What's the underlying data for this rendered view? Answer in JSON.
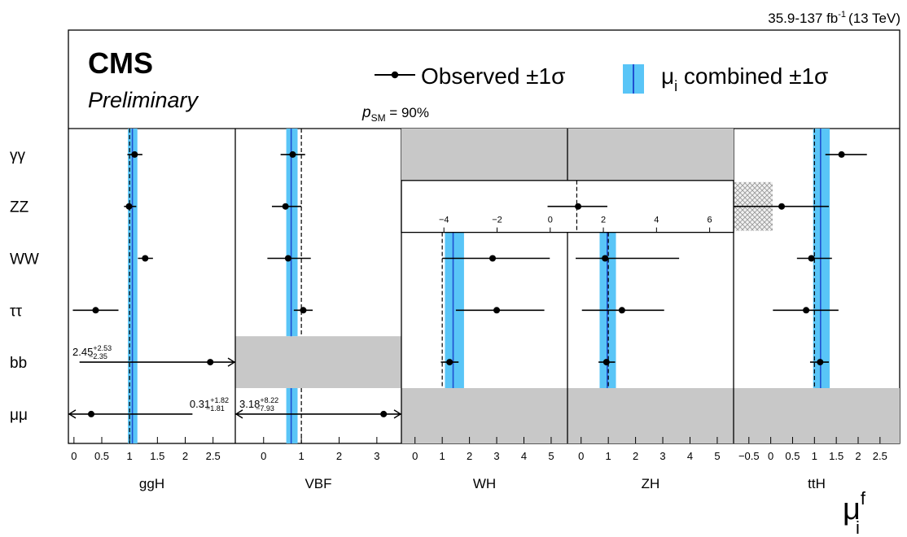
{
  "lumi_label": "35.9-137 fb",
  "lumi_sup": "-1",
  "lumi_energy": "(13 TeV)",
  "cms_label": "CMS",
  "preliminary_label": "Preliminary",
  "legend": {
    "observed": "Observed ±1σ",
    "combined_pre": "μ",
    "combined_sub": "i",
    "combined_post": " combined ±1σ"
  },
  "psm": {
    "p": "p",
    "sub": "SM",
    "value": " = 90%"
  },
  "axis_title": {
    "main": "μ",
    "sup": "f",
    "sub": "i"
  },
  "colors": {
    "band": "#59c5f7",
    "band_line": "#1f4fd1",
    "grey": "#c8c8c8",
    "hatch": "#9a9a9a"
  },
  "chart_data": {
    "type": "scatter",
    "decays": [
      "γγ",
      "ZZ",
      "WW",
      "ττ",
      "bb",
      "μμ"
    ],
    "panels": [
      {
        "name": "ggH",
        "xlim": [
          -0.1,
          2.9
        ],
        "ticks": [
          0,
          0.5,
          1,
          1.5,
          2,
          2.5
        ],
        "tick_labels": [
          "0",
          "0.5",
          "1",
          "1.5",
          "2",
          "2.5"
        ],
        "combined": {
          "value": 1.05,
          "low": 0.97,
          "high": 1.14
        },
        "points": [
          {
            "decay": "γγ",
            "value": 1.09,
            "low": 0.96,
            "high": 1.23
          },
          {
            "decay": "ZZ",
            "value": 0.99,
            "low": 0.9,
            "high": 1.12
          },
          {
            "decay": "WW",
            "value": 1.28,
            "low": 1.15,
            "high": 1.42
          },
          {
            "decay": "ττ",
            "value": 0.39,
            "low": -0.02,
            "high": 0.8
          },
          {
            "decay": "bb",
            "value": 2.45,
            "low": 0.1,
            "high": 2.9,
            "arrow_high": true,
            "label_value": "2.45",
            "label_plus": "+2.53",
            "label_minus": "−2.35"
          },
          {
            "decay": "μμ",
            "value": 0.31,
            "low": -0.1,
            "high": 2.13,
            "arrow_low": true,
            "label_value": "0.31",
            "label_plus": "+1.82",
            "label_minus": "−1.81"
          }
        ]
      },
      {
        "name": "VBF",
        "xlim": [
          -0.75,
          3.65
        ],
        "ticks": [
          0,
          1,
          2,
          3
        ],
        "tick_labels": [
          "0",
          "1",
          "2",
          "3"
        ],
        "combined": {
          "value": 0.73,
          "low": 0.6,
          "high": 0.9
        },
        "points": [
          {
            "decay": "γγ",
            "value": 0.77,
            "low": 0.45,
            "high": 1.1
          },
          {
            "decay": "ZZ",
            "value": 0.58,
            "low": 0.22,
            "high": 1.0
          },
          {
            "decay": "WW",
            "value": 0.65,
            "low": 0.1,
            "high": 1.25
          },
          {
            "decay": "ττ",
            "value": 1.05,
            "low": 0.8,
            "high": 1.3
          },
          {
            "decay": "μμ",
            "value": 3.18,
            "low": -0.75,
            "high": 3.65,
            "arrow_low": true,
            "arrow_high": true,
            "label_value": "3.18",
            "label_plus": "+8.22",
            "label_minus": "−7.93"
          }
        ],
        "grey_rows": [
          "bb"
        ]
      },
      {
        "name": "WH",
        "xlim": [
          -0.5,
          5.6
        ],
        "ticks": [
          0,
          1,
          2,
          3,
          4,
          5
        ],
        "tick_labels": [
          "0",
          "1",
          "2",
          "3",
          "4",
          "5"
        ],
        "combined": {
          "value": 1.4,
          "low": 1.1,
          "high": 1.8
        },
        "points": [
          {
            "decay": "WW",
            "value": 2.85,
            "low": 1.0,
            "high": 4.95
          },
          {
            "decay": "ττ",
            "value": 3.0,
            "low": 1.5,
            "high": 4.75
          },
          {
            "decay": "bb",
            "value": 1.27,
            "low": 0.95,
            "high": 1.6
          }
        ],
        "grey_rows": [
          "γγ",
          "μμ"
        ]
      },
      {
        "name": "ZH",
        "xlim": [
          -0.5,
          5.6
        ],
        "ticks": [
          0,
          1,
          2,
          3,
          4,
          5
        ],
        "tick_labels": [
          "0",
          "1",
          "2",
          "3",
          "4",
          "5"
        ],
        "combined": {
          "value": 0.96,
          "low": 0.68,
          "high": 1.28
        },
        "points": [
          {
            "decay": "WW",
            "value": 0.88,
            "low": -0.2,
            "high": 3.6
          },
          {
            "decay": "ττ",
            "value": 1.5,
            "low": 0.03,
            "high": 3.05
          },
          {
            "decay": "bb",
            "value": 0.93,
            "low": 0.64,
            "high": 1.25
          }
        ],
        "grey_rows": [
          "γγ",
          "μμ"
        ]
      },
      {
        "name": "ttH",
        "xlim": [
          -0.85,
          2.95
        ],
        "ticks": [
          -0.5,
          0,
          0.5,
          1,
          1.5,
          2,
          2.5
        ],
        "tick_labels": [
          "−0.5",
          "0",
          "0.5",
          "1",
          "1.5",
          "2",
          "2.5"
        ],
        "combined": {
          "value": 1.14,
          "low": 0.97,
          "high": 1.35
        },
        "points": [
          {
            "decay": "γγ",
            "value": 1.62,
            "low": 1.25,
            "high": 2.2
          },
          {
            "decay": "ZZ",
            "value": 0.25,
            "low": -0.85,
            "high": 1.33
          },
          {
            "decay": "WW",
            "value": 0.93,
            "low": 0.6,
            "high": 1.4
          },
          {
            "decay": "ττ",
            "value": 0.81,
            "low": 0.05,
            "high": 1.55
          },
          {
            "decay": "bb",
            "value": 1.13,
            "low": 0.9,
            "high": 1.33
          }
        ],
        "grey_rows": [
          "μμ"
        ],
        "hatched_rows": [
          "ZZ"
        ]
      }
    ],
    "zh_zz_inset": {
      "decay": "ZZ",
      "xlim": [
        -5.6,
        6.9
      ],
      "ticks": [
        -4,
        -2,
        0,
        2,
        4,
        6
      ],
      "tick_labels": [
        "−4",
        "−2",
        "0",
        "2",
        "4",
        "6"
      ],
      "value": 1.05,
      "low": -0.1,
      "high": 2.15
    }
  }
}
